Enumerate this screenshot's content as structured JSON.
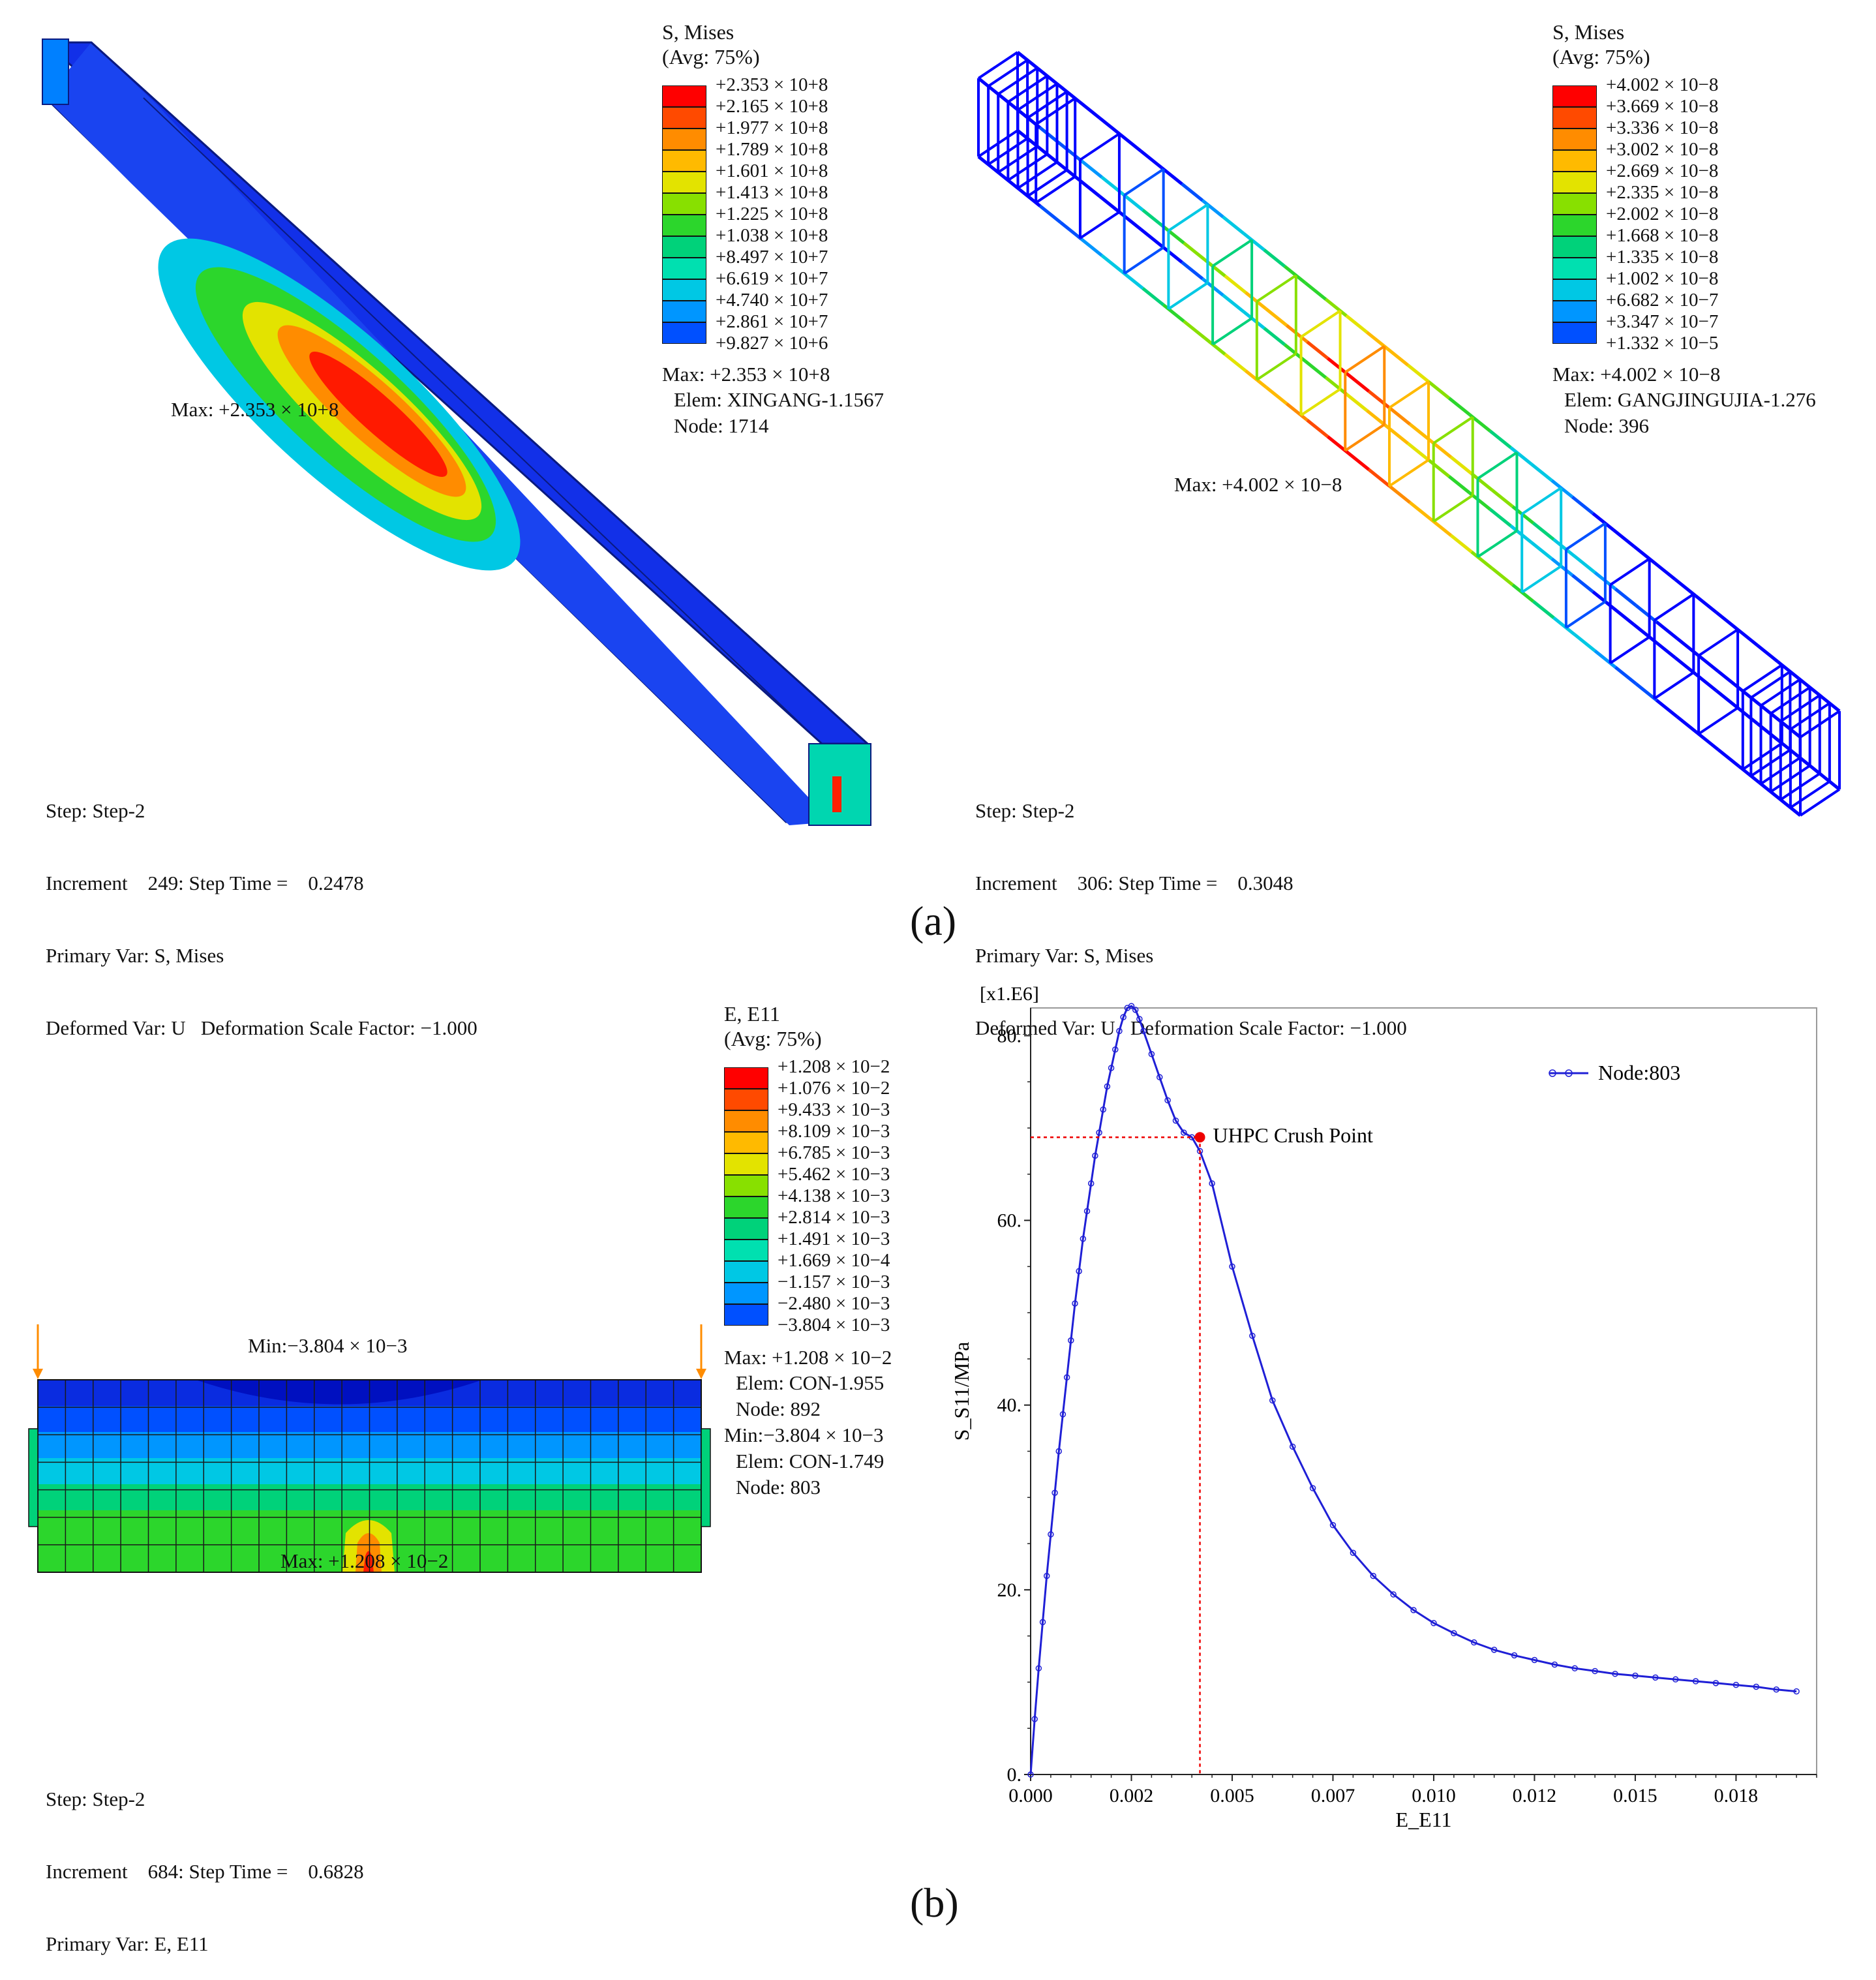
{
  "panel_a": {
    "caption": "(a)",
    "left": {
      "legend": {
        "title": "S, Mises",
        "subtitle": "(Avg: 75%)",
        "colors": [
          "#ff0000",
          "#ff4a00",
          "#ff8c00",
          "#ffba00",
          "#e3e300",
          "#88e000",
          "#2cd62c",
          "#00d27a",
          "#00e0b0",
          "#00c8e4",
          "#0096ff",
          "#0050ff",
          "#0000ff"
        ],
        "values": [
          "+2.353 × 10+8",
          "+2.165 × 10+8",
          "+1.977 × 10+8",
          "+1.789 × 10+8",
          "+1.601 × 10+8",
          "+1.413 × 10+8",
          "+1.225 × 10+8",
          "+1.038 × 10+8",
          "+8.497 × 10+7",
          "+6.619 × 10+7",
          "+4.740 × 10+7",
          "+2.861 × 10+7",
          "+9.827 × 10+6"
        ],
        "max_line": "Max: +2.353 × 10+8",
        "elem_line": "Elem: XINGANG-1.1567",
        "node_line": "Node: 1714"
      },
      "max_marker": "Max: +2.353 × 10+8",
      "step": "Step: Step-2",
      "increment": "Increment    249: Step Time =    0.2478",
      "primary": "Primary Var: S, Mises",
      "deformed": "Deformed Var: U   Deformation Scale Factor: −1.000"
    },
    "right": {
      "legend": {
        "title": "S, Mises",
        "subtitle": "(Avg: 75%)",
        "colors": [
          "#ff0000",
          "#ff4a00",
          "#ff8c00",
          "#ffba00",
          "#e3e300",
          "#88e000",
          "#2cd62c",
          "#00d27a",
          "#00e0b0",
          "#00c8e4",
          "#0096ff",
          "#0050ff",
          "#0000ff"
        ],
        "values": [
          "+4.002 × 10−8",
          "+3.669 × 10−8",
          "+3.336 × 10−8",
          "+3.002 × 10−8",
          "+2.669 × 10−8",
          "+2.335 × 10−8",
          "+2.002 × 10−8",
          "+1.668 × 10−8",
          "+1.335 × 10−8",
          "+1.002 × 10−8",
          "+6.682 × 10−7",
          "+3.347 × 10−7",
          "+1.332 × 10−5"
        ],
        "max_line": "Max: +4.002 × 10−8",
        "elem_line": "Elem: GANGJINGUJIA-1.276",
        "node_line": "Node: 396"
      },
      "max_marker": "Max: +4.002 × 10−8",
      "step": "Step: Step-2",
      "increment": "Increment    306: Step Time =    0.3048",
      "primary": "Primary Var: S, Mises",
      "deformed": "Deformed Var: U   Deformation Scale Factor: −1.000"
    }
  },
  "panel_b": {
    "caption": "(b)",
    "left": {
      "legend": {
        "title": "E, E11",
        "subtitle": "(Avg: 75%)",
        "colors": [
          "#ff0000",
          "#ff4a00",
          "#ff8c00",
          "#ffba00",
          "#e3e300",
          "#88e000",
          "#2cd62c",
          "#00d27a",
          "#00e0b0",
          "#00c8e4",
          "#0096ff",
          "#0050ff",
          "#0000ff"
        ],
        "values": [
          "+1.208 × 10−2",
          "+1.076 × 10−2",
          "+9.433 × 10−3",
          "+8.109 × 10−3",
          "+6.785 × 10−3",
          "+5.462 × 10−3",
          "+4.138 × 10−3",
          "+2.814 × 10−3",
          "+1.491 × 10−3",
          "+1.669 × 10−4",
          "−1.157 × 10−3",
          "−2.480 × 10−3",
          "−3.804 × 10−3"
        ],
        "max_line": "Max: +1.208 × 10−2",
        "max_elem": "Elem: CON-1.955",
        "max_node": "Node: 892",
        "min_line": "Min:−3.804 × 10−3",
        "min_elem": "Elem: CON-1.749",
        "min_node": "Node: 803"
      },
      "min_marker": "Min:−3.804 × 10−3",
      "max_marker": "Max: +1.208 × 10−2",
      "step": "Step: Step-2",
      "increment": "Increment    684: Step Time =    0.6828",
      "primary": "Primary Var: E, E11"
    }
  },
  "chart_data": {
    "type": "line",
    "title": "",
    "multiplier_label": "[x1.E6]",
    "xlabel": "E_E11",
    "ylabel": "S_S11/MPa",
    "xlim": [
      0.0,
      0.0195
    ],
    "ylim": [
      0,
      83
    ],
    "xticks": [
      0.0,
      0.0025,
      0.005,
      0.0075,
      0.01,
      0.0125,
      0.015,
      0.0175
    ],
    "xtick_labels": [
      "0.000",
      "0.002",
      "0.005",
      "0.007",
      "0.010",
      "0.012",
      "0.015",
      "0.018"
    ],
    "yticks": [
      0,
      20,
      40,
      60,
      80
    ],
    "ytick_labels": [
      "0.",
      "20.",
      "40.",
      "60.",
      "80."
    ],
    "legend": "Node:803",
    "series": [
      {
        "name": "Node:803",
        "color": "#1f1fd6",
        "x": [
          0.0,
          0.0001,
          0.0002,
          0.0003,
          0.0004,
          0.0005,
          0.0006,
          0.0007,
          0.0008,
          0.0009,
          0.001,
          0.0011,
          0.0012,
          0.0013,
          0.0014,
          0.0015,
          0.0016,
          0.0017,
          0.0018,
          0.0019,
          0.002,
          0.0021,
          0.0022,
          0.0023,
          0.0024,
          0.0025,
          0.0026,
          0.0027,
          0.0028,
          0.003,
          0.0032,
          0.0034,
          0.0036,
          0.0038,
          0.004,
          0.0042,
          0.0045,
          0.005,
          0.0055,
          0.006,
          0.0065,
          0.007,
          0.0075,
          0.008,
          0.0085,
          0.009,
          0.0095,
          0.01,
          0.0105,
          0.011,
          0.0115,
          0.012,
          0.0125,
          0.013,
          0.0135,
          0.014,
          0.0145,
          0.015,
          0.0155,
          0.016,
          0.0165,
          0.017,
          0.0175,
          0.018,
          0.0185,
          0.019
        ],
        "y": [
          0,
          6,
          11.5,
          16.5,
          21.5,
          26,
          30.5,
          35,
          39,
          43,
          47,
          51,
          54.5,
          58,
          61,
          64,
          67,
          69.5,
          72,
          74.5,
          76.5,
          78.5,
          80.5,
          82,
          83,
          83.2,
          82.8,
          81.8,
          80.5,
          78,
          75.5,
          73,
          70.8,
          69.5,
          69,
          67.5,
          64,
          55,
          47.5,
          40.5,
          35.5,
          31,
          27,
          24,
          21.5,
          19.5,
          17.8,
          16.4,
          15.3,
          14.3,
          13.5,
          12.9,
          12.4,
          11.9,
          11.5,
          11.2,
          10.9,
          10.7,
          10.5,
          10.3,
          10.1,
          9.9,
          9.7,
          9.5,
          9.2,
          9.0
        ]
      }
    ],
    "annotation": {
      "label": "UHPC Crush Point",
      "x": 0.0042,
      "y": 69
    }
  }
}
